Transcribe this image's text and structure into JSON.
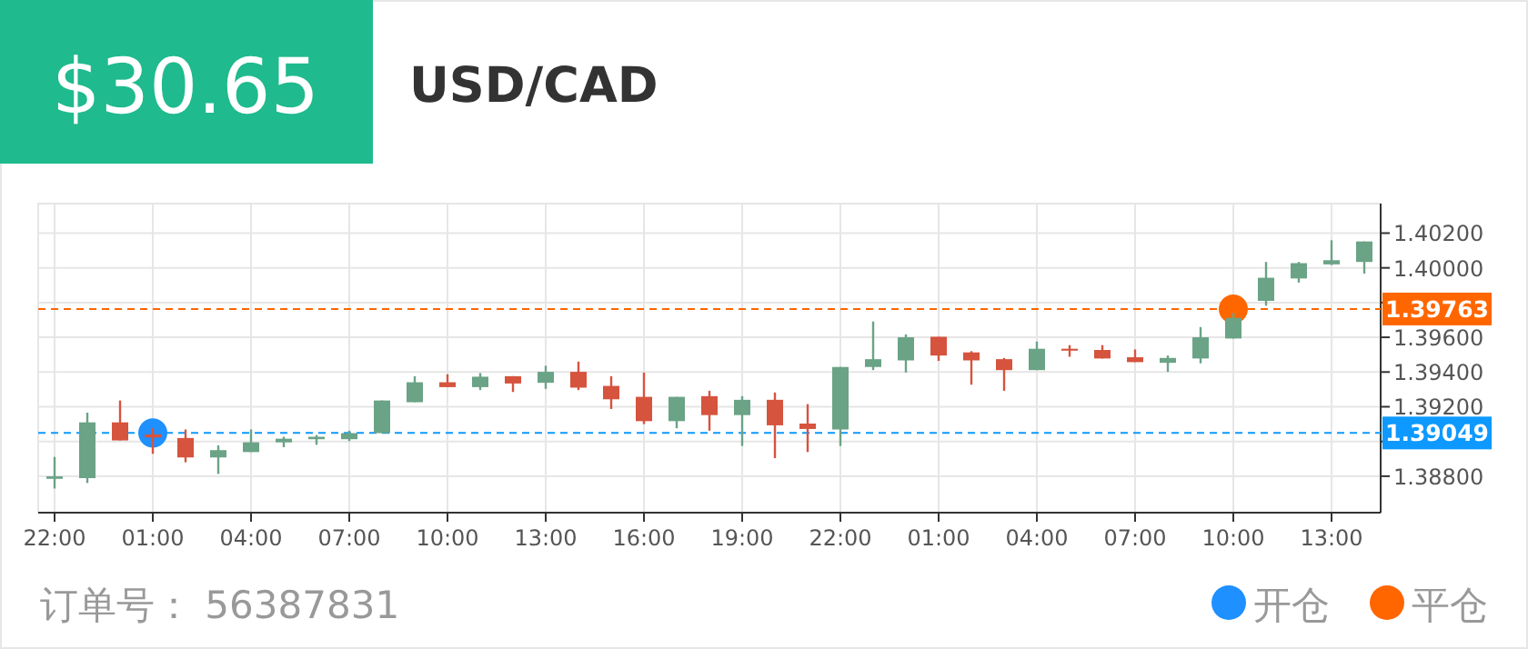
{
  "chart_data": {
    "type": "candlestick",
    "title": "$30.65",
    "subtitle": "USD/CAD",
    "annotations": [
      "订单号： 56387831"
    ],
    "categories": [
      "22:00",
      null,
      null,
      "01:00",
      null,
      null,
      "04:00",
      null,
      null,
      "07:00",
      null,
      null,
      "10:00",
      null,
      null,
      "13:00",
      null,
      null,
      "16:00",
      null,
      null,
      "19:00",
      null,
      null,
      "22:00",
      null,
      null,
      "01:00",
      null,
      null,
      "04:00",
      null,
      null,
      "07:00",
      null,
      null,
      "10:00",
      null,
      null,
      "13:00",
      null
    ],
    "ohlc": [
      [
        1.38785,
        1.38911,
        1.38729,
        1.38799
      ],
      [
        1.38789,
        1.39166,
        1.38761,
        1.3911
      ],
      [
        1.3911,
        1.39236,
        1.39006,
        1.39006
      ],
      [
        1.39041,
        1.39076,
        1.38929,
        1.39023
      ],
      [
        1.3902,
        1.39069,
        1.3888,
        1.38908
      ],
      [
        1.38908,
        1.38978,
        1.38813,
        1.3895
      ],
      [
        1.38939,
        1.39069,
        1.38939,
        1.38995
      ],
      [
        1.38995,
        1.39027,
        1.38967,
        1.39016
      ],
      [
        1.39013,
        1.39037,
        1.38981,
        1.39027
      ],
      [
        1.39013,
        1.39062,
        1.39002,
        1.39048
      ],
      [
        1.39048,
        1.39236,
        1.39048,
        1.39236
      ],
      [
        1.39226,
        1.39376,
        1.39226,
        1.39341
      ],
      [
        1.39341,
        1.39387,
        1.39313,
        1.39313
      ],
      [
        1.39313,
        1.39394,
        1.39296,
        1.39373
      ],
      [
        1.39376,
        1.39376,
        1.39285,
        1.39334
      ],
      [
        1.39338,
        1.39436,
        1.39303,
        1.39401
      ],
      [
        1.39401,
        1.3946,
        1.39296,
        1.3931
      ],
      [
        1.3932,
        1.39376,
        1.39187,
        1.39243
      ],
      [
        1.39257,
        1.39397,
        1.391,
        1.39117
      ],
      [
        1.39117,
        1.39257,
        1.39076,
        1.39257
      ],
      [
        1.39261,
        1.39292,
        1.39062,
        1.39152
      ],
      [
        1.39152,
        1.39261,
        1.38974,
        1.3924
      ],
      [
        1.3924,
        1.39282,
        1.38904,
        1.39093
      ],
      [
        1.39103,
        1.39215,
        1.38939,
        1.39072
      ],
      [
        1.39069,
        1.39429,
        1.38974,
        1.39429
      ],
      [
        1.39429,
        1.39691,
        1.39411,
        1.39474
      ],
      [
        1.39467,
        1.39617,
        1.39397,
        1.396
      ],
      [
        1.39603,
        1.39603,
        1.39464,
        1.39495
      ],
      [
        1.39513,
        1.3952,
        1.39327,
        1.39467
      ],
      [
        1.39474,
        1.39481,
        1.39292,
        1.39411
      ],
      [
        1.39411,
        1.39576,
        1.39411,
        1.39534
      ],
      [
        1.39534,
        1.39555,
        1.39488,
        1.39523
      ],
      [
        1.39527,
        1.39555,
        1.39478,
        1.39478
      ],
      [
        1.39485,
        1.3953,
        1.39457,
        1.39457
      ],
      [
        1.39453,
        1.39495,
        1.39401,
        1.39481
      ],
      [
        1.39478,
        1.39659,
        1.3945,
        1.396
      ],
      [
        1.39593,
        1.3974,
        1.39593,
        1.39712
      ],
      [
        1.3981,
        1.40034,
        1.39782,
        1.39943
      ],
      [
        1.39939,
        1.40034,
        1.39915,
        1.40027
      ],
      [
        1.4002,
        1.40159,
        1.40016,
        1.40044
      ],
      [
        1.40034,
        1.40152,
        1.39967,
        1.40152
      ]
    ],
    "colors": [
      "#6aa386",
      "#6aa386",
      "#d6533e",
      "#d6533e",
      "#d6533e",
      "#6aa386",
      "#6aa386",
      "#6aa386",
      "#6aa386",
      "#6aa386",
      "#6aa386",
      "#6aa386",
      "#d6533e",
      "#6aa386",
      "#d6533e",
      "#6aa386",
      "#d6533e",
      "#d6533e",
      "#d6533e",
      "#6aa386",
      "#d6533e",
      "#6aa386",
      "#d6533e",
      "#d6533e",
      "#6aa386",
      "#6aa386",
      "#6aa386",
      "#d6533e",
      "#d6533e",
      "#d6533e",
      "#6aa386",
      "#d6533e",
      "#d6533e",
      "#d6533e",
      "#6aa386",
      "#6aa386",
      "#6aa386",
      "#6aa386",
      "#6aa386",
      "#6aa386",
      "#6aa386"
    ],
    "series": [
      {
        "name": "开仓",
        "type": "scatter",
        "color": "#1e90ff",
        "values": [
          null,
          null,
          null,
          1.39049,
          null,
          null,
          null,
          null,
          null,
          null,
          null,
          null,
          null,
          null,
          null,
          null,
          null,
          null,
          null,
          null,
          null,
          null,
          null,
          null,
          null,
          null,
          null,
          null,
          null,
          null,
          null,
          null,
          null,
          null,
          null,
          null,
          null,
          null,
          null,
          null,
          null
        ]
      },
      {
        "name": "平仓",
        "type": "scatter",
        "color": "#ff6600",
        "values": [
          null,
          null,
          null,
          null,
          null,
          null,
          null,
          null,
          null,
          null,
          null,
          null,
          null,
          null,
          null,
          null,
          null,
          null,
          null,
          null,
          null,
          null,
          null,
          null,
          null,
          null,
          null,
          null,
          null,
          null,
          null,
          null,
          null,
          null,
          null,
          null,
          1.39763,
          null,
          null,
          null,
          null
        ]
      }
    ],
    "ylim": [
      1.3859,
      1.4037
    ],
    "yticks": [
      {
        "value": 1.388,
        "label": "1.38800"
      },
      {
        "value": 1.39,
        "label": null
      },
      {
        "value": 1.392,
        "label": "1.39200"
      },
      {
        "value": 1.394,
        "label": "1.39400"
      },
      {
        "value": 1.396,
        "label": "1.39600"
      },
      {
        "value": 1.398,
        "label": null
      },
      {
        "value": 1.4,
        "label": "1.40000"
      },
      {
        "value": 1.402,
        "label": "1.40200"
      }
    ],
    "ref_lines": [
      {
        "axis": "y",
        "value": 1.39763,
        "label": "1.39763",
        "color": "#ff6600",
        "line_style": "dashed"
      },
      {
        "axis": "y",
        "value": 1.39049,
        "label": "1.39049",
        "color": "#0d99ff",
        "line_style": "dashed"
      }
    ],
    "grid": true,
    "legend": "bottom right",
    "marker": "circle"
  }
}
